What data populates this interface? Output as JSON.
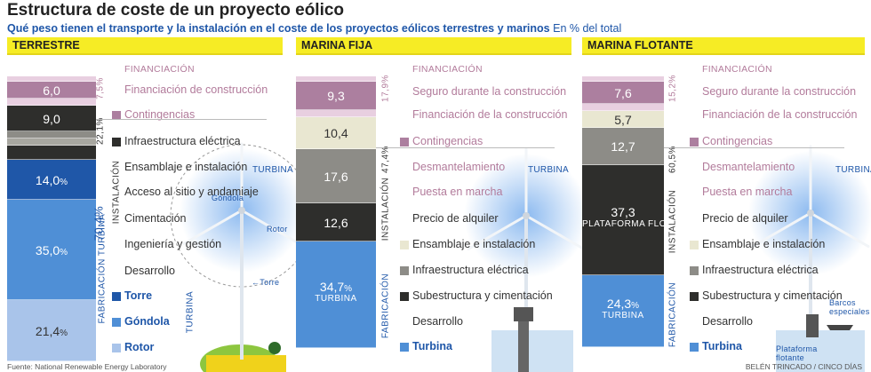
{
  "title": "Estructura de coste de un proyecto eólico",
  "subtitle": "Qué peso tienen el transporte y la instalación en el coste de los proyectos eólicos terrestres y marinos",
  "unit": "En % del total",
  "source": "Fuente: National Renewable Energy Laboratory",
  "credit": "BELÉN TRINCADO / CINCO DÍAS",
  "colors": {
    "header_yellow": "#f6ec25",
    "finance_light": "#e8cfe0",
    "finance_mid": "#ac7f9f",
    "dark": "#2e2e2c",
    "grey": "#8d8c87",
    "mid_grey": "#a8a7a0",
    "cream": "#e9e7d1",
    "blue_dark": "#1f57a8",
    "blue_mid": "#4f8fd6",
    "blue_light": "#a9c4ea"
  },
  "chart_data": [
    {
      "type": "bar",
      "name": "TERRESTRE",
      "segments": [
        {
          "value": 6.0,
          "label": "6,0",
          "color": "#ac7f9f"
        },
        {
          "value": 9.0,
          "label": "9,0",
          "color": "#2e2e2c"
        },
        {
          "value": 14.0,
          "label": "14,0",
          "unit": "%",
          "color": "#1f57a8"
        },
        {
          "value": 35.0,
          "label": "35,0",
          "unit": "%",
          "color": "#4f8fd6"
        },
        {
          "value": 21.4,
          "label": "21,4",
          "unit": "%",
          "color": "#a9c4ea"
        }
      ],
      "groups": [
        {
          "label": "7,5%",
          "text": "Financiación"
        },
        {
          "label": "22,1%",
          "text": ""
        },
        {
          "label": "70,4%",
          "text": "FABRICACIÓN TURBINA"
        },
        {
          "label": "",
          "text": "INSTALACIÓN"
        },
        {
          "label": "",
          "text": "TURBINA"
        }
      ],
      "legend": [
        {
          "text": "FINANCIACIÓN",
          "style": "grp"
        },
        {
          "text": "Financiación de construcción",
          "style": "pink"
        },
        {
          "text": "Contingencias",
          "style": "pink",
          "swatch": "#ac7f9f"
        },
        {
          "text": "Infraestructura eléctrica",
          "style": "",
          "swatch": "#2e2e2c"
        },
        {
          "text": "Ensamblaje e instalación",
          "style": ""
        },
        {
          "text": "Acceso al sitio y andamiaje",
          "style": ""
        },
        {
          "text": "Cimentación",
          "style": ""
        },
        {
          "text": "Ingeniería y gestión",
          "style": ""
        },
        {
          "text": "Desarrollo",
          "style": ""
        },
        {
          "text": "Torre",
          "style": "blue",
          "swatch": "#1f57a8"
        },
        {
          "text": "Góndola",
          "style": "blue",
          "swatch": "#4f8fd6"
        },
        {
          "text": "Rotor",
          "style": "blue",
          "swatch": "#a9c4ea"
        }
      ]
    },
    {
      "type": "bar",
      "name": "MARINA FIJA",
      "segments": [
        {
          "value": 9.3,
          "label": "9,3",
          "color": "#ac7f9f"
        },
        {
          "value": 10.4,
          "label": "10,4",
          "color": "#e9e7d1"
        },
        {
          "value": 17.6,
          "label": "17,6",
          "color": "#8d8c87"
        },
        {
          "value": 12.6,
          "label": "12,6",
          "color": "#2e2e2c"
        },
        {
          "value": 34.7,
          "label": "34,7",
          "unit": "%",
          "sub": "TURBINA",
          "color": "#4f8fd6"
        }
      ],
      "groups": [
        {
          "label": "17,9%",
          "text": ""
        },
        {
          "label": "47,4%",
          "text": "INSTALACIÓN"
        },
        {
          "label": "",
          "text": "FABRICACIÓN"
        }
      ],
      "legend": [
        {
          "text": "FINANCIACIÓN",
          "style": "grp"
        },
        {
          "text": "Seguro durante la construcción",
          "style": "pink"
        },
        {
          "text": "Financiación de la construcción",
          "style": "pink"
        },
        {
          "text": "Contingencias",
          "style": "pink",
          "swatch": "#ac7f9f"
        },
        {
          "text": "Desmantelamiento",
          "style": "pink"
        },
        {
          "text": "Puesta en marcha",
          "style": "pink"
        },
        {
          "text": "Precio de alquiler",
          "style": ""
        },
        {
          "text": "Ensamblaje e instalación",
          "style": "",
          "swatch": "#e9e7d1"
        },
        {
          "text": "Infraestructura eléctrica",
          "style": "",
          "swatch": "#8d8c87"
        },
        {
          "text": "Subestructura y cimentación",
          "style": "",
          "swatch": "#2e2e2c"
        },
        {
          "text": "Desarrollo",
          "style": ""
        },
        {
          "text": "Turbina",
          "style": "blue",
          "swatch": "#4f8fd6"
        }
      ]
    },
    {
      "type": "bar",
      "name": "MARINA FLOTANTE",
      "segments": [
        {
          "value": 7.6,
          "label": "7,6",
          "color": "#ac7f9f"
        },
        {
          "value": 5.7,
          "label": "5,7",
          "color": "#e9e7d1"
        },
        {
          "value": 12.7,
          "label": "12,7",
          "color": "#8d8c87"
        },
        {
          "value": 37.3,
          "label": "37,3",
          "sub": "PLATAFORMA FLOTANTE",
          "color": "#2e2e2c"
        },
        {
          "value": 24.3,
          "label": "24,3",
          "unit": "%",
          "sub": "TURBINA",
          "color": "#4f8fd6"
        }
      ],
      "groups": [
        {
          "label": "15,2%",
          "text": ""
        },
        {
          "label": "60,5%",
          "text": "INSTALACIÓN"
        },
        {
          "label": "",
          "text": "FABRICACIÓN"
        }
      ],
      "legend": [
        {
          "text": "FINANCIACIÓN",
          "style": "grp"
        },
        {
          "text": "Seguro durante la construcción",
          "style": "pink"
        },
        {
          "text": "Financiación de la construcción",
          "style": "pink"
        },
        {
          "text": "Contingencias",
          "style": "pink",
          "swatch": "#ac7f9f"
        },
        {
          "text": "Desmantelamiento",
          "style": "pink"
        },
        {
          "text": "Puesta en marcha",
          "style": "pink"
        },
        {
          "text": "Precio de alquiler",
          "style": ""
        },
        {
          "text": "Ensamblaje e instalación",
          "style": "",
          "swatch": "#e9e7d1"
        },
        {
          "text": "Infraestructura eléctrica",
          "style": "",
          "swatch": "#8d8c87"
        },
        {
          "text": "Subestructura y cimentación",
          "style": "",
          "swatch": "#2e2e2c"
        },
        {
          "text": "Desarrollo",
          "style": ""
        },
        {
          "text": "Turbina",
          "style": "blue",
          "swatch": "#4f8fd6"
        }
      ]
    }
  ],
  "turbine_labels": {
    "terrestre": [
      "TURBINA",
      "Góndola",
      "Rotor",
      "←Torre"
    ],
    "marina_fija": [
      "TURBINA"
    ],
    "marina_flotante": [
      "TURBINA",
      "Barcos especiales",
      "Plataforma flotante"
    ]
  }
}
